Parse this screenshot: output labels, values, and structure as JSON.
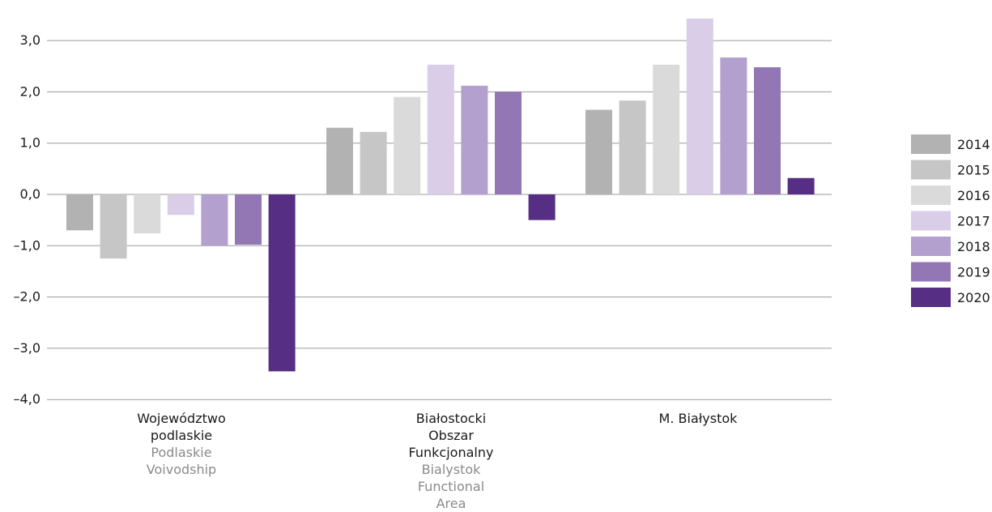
{
  "chart_data": {
    "type": "bar",
    "title": "",
    "xlabel": "",
    "ylabel": "",
    "ylim": [
      -4.0,
      3.4
    ],
    "y_ticks": [
      "3,0",
      "2,0",
      "1,0",
      "0,0",
      "–1,0",
      "–2,0",
      "–3,0",
      "–4,0"
    ],
    "y_tick_values": [
      3,
      2,
      1,
      0,
      -1,
      -2,
      -3,
      -4
    ],
    "grid": true,
    "legend_position": "right",
    "categories": [
      {
        "pl": [
          "Województwo",
          "podlaskie"
        ],
        "en": [
          "Podlaskie",
          "Voivodship"
        ]
      },
      {
        "pl": [
          "Białostocki",
          "Obszar",
          "Funkcjonalny"
        ],
        "en": [
          "Bialystok",
          "Functional",
          "Area"
        ]
      },
      {
        "pl": [
          "M. Białystok"
        ],
        "en": []
      }
    ],
    "series": [
      {
        "name": "2014",
        "color": "#b2b2b2",
        "values": [
          -0.7,
          1.3,
          1.65
        ]
      },
      {
        "name": "2015",
        "color": "#c6c6c6",
        "values": [
          -1.25,
          1.22,
          1.83
        ]
      },
      {
        "name": "2016",
        "color": "#dadada",
        "values": [
          -0.76,
          1.9,
          2.53
        ]
      },
      {
        "name": "2017",
        "color": "#d9cde8",
        "values": [
          -0.4,
          2.53,
          3.43
        ]
      },
      {
        "name": "2018",
        "color": "#b3a0cf",
        "values": [
          -1.0,
          2.12,
          2.67
        ]
      },
      {
        "name": "2019",
        "color": "#9377b4",
        "values": [
          -0.98,
          2.0,
          2.48
        ]
      },
      {
        "name": "2020",
        "color": "#562e83",
        "values": [
          -3.45,
          -0.5,
          0.32
        ]
      }
    ]
  }
}
